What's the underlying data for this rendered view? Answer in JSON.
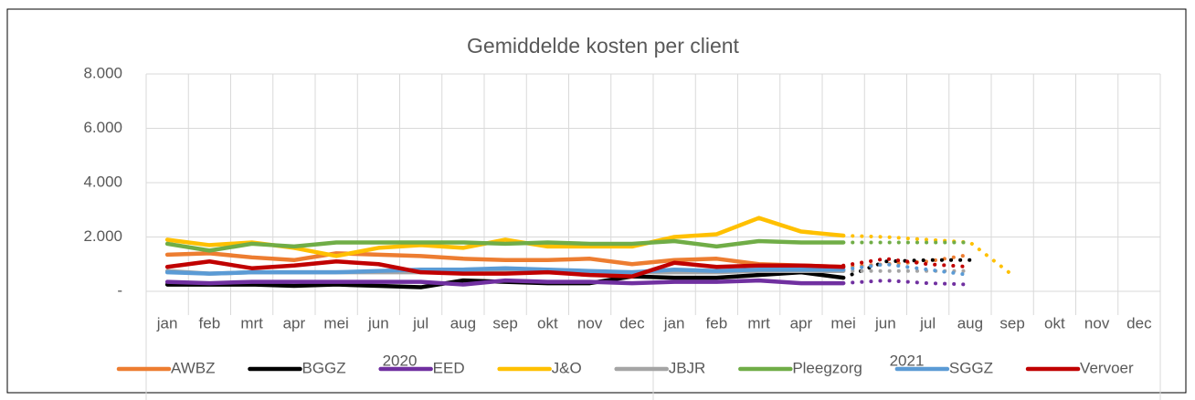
{
  "chart_data": {
    "type": "line",
    "title": "Gemiddelde kosten per client",
    "categories": [
      "jan",
      "feb",
      "mrt",
      "apr",
      "mei",
      "jun",
      "jul",
      "aug",
      "sep",
      "okt",
      "nov",
      "dec",
      "jan",
      "feb",
      "mrt",
      "apr",
      "mei",
      "jun",
      "jul",
      "aug",
      "sep",
      "okt",
      "nov",
      "dec"
    ],
    "year_labels": [
      "2020",
      "2021"
    ],
    "ylim": [
      0,
      8000
    ],
    "yticks": [
      {
        "value": 0,
        "label": "-"
      },
      {
        "value": 2000,
        "label": "2.000"
      },
      {
        "value": 4000,
        "label": "4.000"
      },
      {
        "value": 6000,
        "label": "6.000"
      },
      {
        "value": 8000,
        "label": "8.000"
      }
    ],
    "grid": true,
    "legend": "bottom",
    "series": [
      {
        "name": "AWBZ",
        "color": "#ed7d31",
        "values": [
          1350,
          1400,
          1250,
          1150,
          1400,
          1350,
          1300,
          1200,
          1150,
          1150,
          1200,
          1000,
          1150,
          1200,
          1000,
          950,
          900,
          null,
          null,
          null,
          null,
          null,
          null,
          null
        ],
        "forecast": [
          null,
          null,
          null,
          null,
          null,
          null,
          null,
          null,
          null,
          null,
          null,
          null,
          null,
          null,
          null,
          null,
          900,
          1000,
          1100,
          1350,
          null,
          null,
          null,
          null
        ]
      },
      {
        "name": "BGGZ",
        "color": "#000000",
        "values": [
          250,
          250,
          250,
          200,
          250,
          200,
          150,
          400,
          350,
          300,
          300,
          550,
          500,
          500,
          600,
          700,
          500,
          null,
          null,
          null,
          null,
          null,
          null,
          null
        ],
        "forecast": [
          null,
          null,
          null,
          null,
          null,
          null,
          null,
          null,
          null,
          null,
          null,
          null,
          null,
          null,
          null,
          null,
          500,
          1100,
          1150,
          1150,
          null,
          null,
          null,
          null
        ]
      },
      {
        "name": "EED",
        "color": "#7030a0",
        "values": [
          350,
          300,
          350,
          350,
          350,
          350,
          350,
          250,
          400,
          350,
          350,
          300,
          350,
          350,
          400,
          300,
          300,
          null,
          null,
          null,
          null,
          null,
          null,
          null
        ],
        "forecast": [
          null,
          null,
          null,
          null,
          null,
          null,
          null,
          null,
          null,
          null,
          null,
          null,
          null,
          null,
          null,
          null,
          300,
          400,
          300,
          250,
          null,
          null,
          null,
          null
        ]
      },
      {
        "name": "J&O",
        "color": "#ffc000",
        "values": [
          1900,
          1700,
          1800,
          1600,
          1300,
          1600,
          1700,
          1600,
          1900,
          1650,
          1650,
          1650,
          2000,
          2100,
          2700,
          2200,
          2050,
          null,
          null,
          null,
          null,
          null,
          null,
          null
        ],
        "forecast": [
          null,
          null,
          null,
          null,
          null,
          null,
          null,
          null,
          null,
          null,
          null,
          null,
          null,
          null,
          null,
          null,
          2050,
          2000,
          1900,
          1800,
          600,
          null,
          null,
          null
        ]
      },
      {
        "name": "JBJR",
        "color": "#a5a5a5",
        "values": [
          750,
          650,
          700,
          700,
          700,
          700,
          700,
          700,
          750,
          700,
          700,
          700,
          700,
          700,
          750,
          750,
          750,
          null,
          null,
          null,
          null,
          null,
          null,
          null
        ],
        "forecast": [
          null,
          null,
          null,
          null,
          null,
          null,
          null,
          null,
          null,
          null,
          null,
          null,
          null,
          null,
          null,
          null,
          750,
          750,
          750,
          750,
          null,
          null,
          null,
          null
        ]
      },
      {
        "name": "Pleegzorg",
        "color": "#70ad47",
        "values": [
          1750,
          1500,
          1750,
          1650,
          1800,
          1800,
          1800,
          1800,
          1750,
          1800,
          1750,
          1750,
          1850,
          1650,
          1850,
          1800,
          1800,
          null,
          null,
          null,
          null,
          null,
          null,
          null
        ],
        "forecast": [
          null,
          null,
          null,
          null,
          null,
          null,
          null,
          null,
          null,
          null,
          null,
          null,
          null,
          null,
          null,
          null,
          1800,
          1800,
          1800,
          1800,
          null,
          null,
          null,
          null
        ]
      },
      {
        "name": "SGGZ",
        "color": "#5b9bd5",
        "values": [
          700,
          650,
          700,
          700,
          700,
          750,
          800,
          800,
          850,
          800,
          750,
          700,
          800,
          750,
          800,
          800,
          800,
          null,
          null,
          null,
          null,
          null,
          null,
          null
        ],
        "forecast": [
          null,
          null,
          null,
          null,
          null,
          null,
          null,
          null,
          null,
          null,
          null,
          null,
          null,
          null,
          null,
          null,
          800,
          1000,
          800,
          600,
          null,
          null,
          null,
          null
        ]
      },
      {
        "name": "Vervoer",
        "color": "#c00000",
        "values": [
          900,
          1100,
          850,
          950,
          1100,
          1000,
          700,
          650,
          650,
          700,
          600,
          550,
          1050,
          900,
          950,
          950,
          900,
          null,
          null,
          null,
          null,
          null,
          null,
          null
        ],
        "forecast": [
          null,
          null,
          null,
          null,
          null,
          null,
          null,
          null,
          null,
          null,
          null,
          null,
          null,
          null,
          null,
          null,
          950,
          1200,
          1000,
          900,
          null,
          null,
          null,
          null
        ]
      }
    ]
  }
}
